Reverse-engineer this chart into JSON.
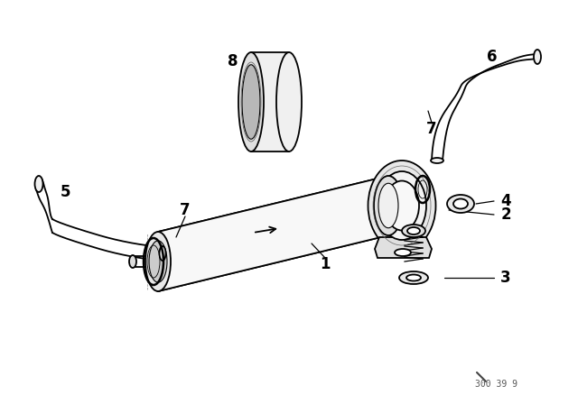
{
  "bg_color": "#ffffff",
  "line_color": "#000000",
  "watermark": "300 39 9",
  "figsize": [
    6.4,
    4.48
  ],
  "dpi": 100
}
